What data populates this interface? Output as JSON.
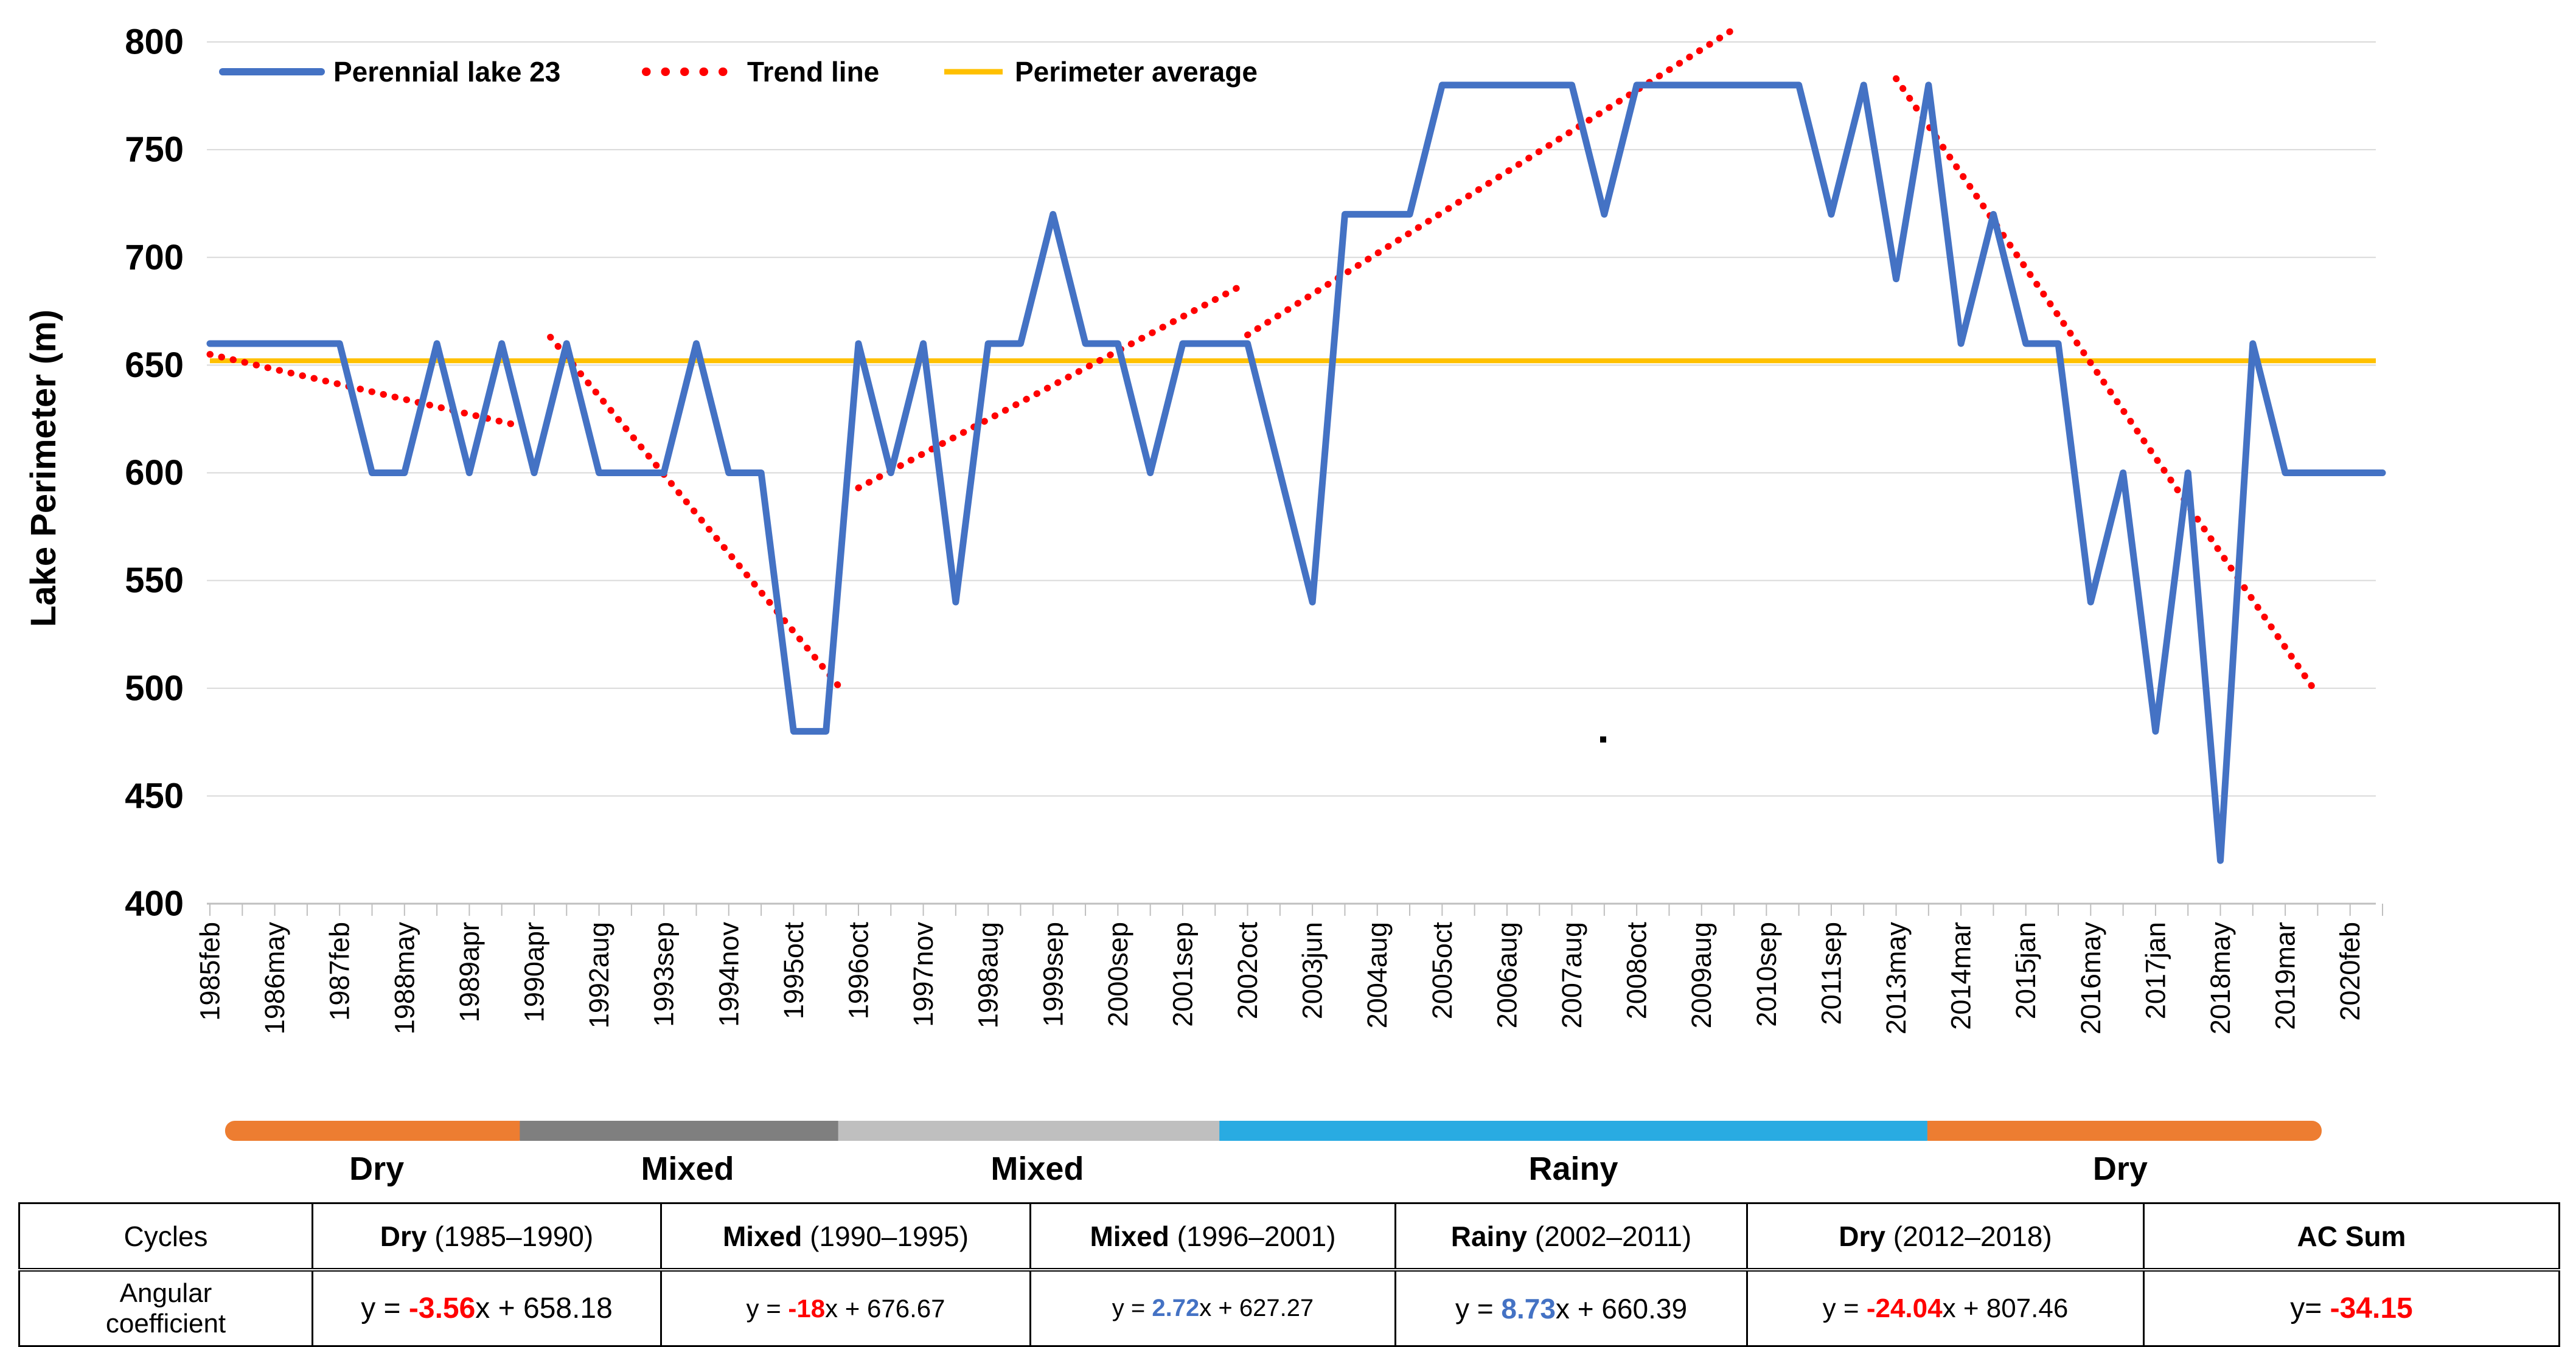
{
  "chart_data": {
    "type": "line",
    "title": "",
    "ylabel": "Lake Perimeter (m)",
    "ylim": [
      400,
      800
    ],
    "ytick_step": 50,
    "grid": "horizontal",
    "legend_position": "top-left-inside",
    "x_labels": [
      "1985feb",
      "1986may",
      "1987feb",
      "1988may",
      "1989apr",
      "1990apr",
      "1992aug",
      "1993sep",
      "1994nov",
      "1995oct",
      "1996oct",
      "1997nov",
      "1998aug",
      "1999sep",
      "2000sep",
      "2001sep",
      "2002oct",
      "2003jun",
      "2004aug",
      "2005oct",
      "2006aug",
      "2007aug",
      "2008oct",
      "2009aug",
      "2010sep",
      "2011sep",
      "2013may",
      "2014mar",
      "2015jan",
      "2016may",
      "2017jan",
      "2018may",
      "2019mar",
      "2020feb"
    ],
    "label_every_n_points": 2,
    "series": [
      {
        "name": "Perennial lake 23",
        "color": "#4472C4",
        "values": [
          660,
          660,
          660,
          660,
          660,
          600,
          600,
          660,
          600,
          660,
          600,
          660,
          600,
          600,
          600,
          660,
          600,
          600,
          480,
          480,
          660,
          600,
          660,
          540,
          660,
          660,
          720,
          660,
          660,
          600,
          660,
          660,
          660,
          600,
          540,
          720,
          720,
          720,
          780,
          780,
          780,
          780,
          780,
          720,
          780,
          780,
          780,
          780,
          780,
          780,
          720,
          780,
          690,
          780,
          660,
          720,
          660,
          660,
          540,
          600,
          480,
          600,
          420,
          660,
          600,
          600,
          600,
          600
        ]
      }
    ],
    "average_line": {
      "name": "Perimeter average",
      "value": 652,
      "color": "#FFC000"
    },
    "trend_line": {
      "name": "Trend line",
      "color": "#FF0000",
      "segments": [
        {
          "x1": 0,
          "y1": 655,
          "x2": 9.5,
          "y2": 622
        },
        {
          "x1": 10.5,
          "y1": 663,
          "x2": 19.5,
          "y2": 499
        },
        {
          "x1": 20,
          "y1": 593,
          "x2": 31.7,
          "y2": 686
        },
        {
          "x1": 32,
          "y1": 664,
          "x2": 47,
          "y2": 806
        },
        {
          "x1": 52,
          "y1": 783,
          "x2": 65,
          "y2": 497
        }
      ]
    },
    "legend": [
      {
        "label": "Perennial lake 23",
        "color": "#4472C4",
        "style": "solid"
      },
      {
        "label": "Trend line",
        "color": "#FF0000",
        "style": "dotted"
      },
      {
        "label": "Perimeter average",
        "color": "#FFC000",
        "style": "solid"
      }
    ]
  },
  "period_bands": [
    {
      "label": "Dry",
      "color": "#ED7D31",
      "from": 0.007,
      "to": 0.147
    },
    {
      "label": "Mixed",
      "color": "#7F7F7F",
      "from": 0.147,
      "to": 0.294
    },
    {
      "label": "Mixed",
      "color": "#BFBFBF",
      "from": 0.294,
      "to": 0.47
    },
    {
      "label": "Rainy",
      "color": "#29ABE2",
      "from": 0.47,
      "to": 0.789
    },
    {
      "label": "Dry",
      "color": "#ED7D31",
      "from": 0.789,
      "to": 0.975
    }
  ],
  "table": {
    "row1_label": "Cycles",
    "row2_label": "Angular coefficient",
    "cycles": [
      {
        "name": "Dry",
        "range": " (1985–1990)"
      },
      {
        "name": "Mixed",
        "range": " (1990–1995)"
      },
      {
        "name": "Mixed",
        "range": " (1996–2001)"
      },
      {
        "name": "Rainy",
        "range": " (2002–2011)"
      },
      {
        "name": "Dry",
        "range": " (2012–2018)"
      },
      {
        "name": "AC Sum",
        "range": ""
      }
    ],
    "coefficients": [
      {
        "pre": "y = ",
        "coef": "-3.56",
        "coef_color": "#FF0000",
        "post": "x + 658.18"
      },
      {
        "pre": "y = ",
        "coef": "-18",
        "coef_color": "#FF0000",
        "post": "x + 676.67"
      },
      {
        "pre": "y = ",
        "coef": "2.72",
        "coef_color": "#4472C4",
        "post": "x + 627.27"
      },
      {
        "pre": "y = ",
        "coef": "8.73",
        "coef_color": "#4472C4",
        "post": "x + 660.39"
      },
      {
        "pre": "y = ",
        "coef": "-24.04",
        "coef_color": "#FF0000",
        "post": "x + 807.46"
      },
      {
        "pre": "y= ",
        "coef": "-34.15",
        "coef_color": "#FF0000",
        "post": ""
      }
    ]
  },
  "colors": {
    "gridline": "#D9D9D9",
    "axis": "#BFBFBF",
    "artifact_dot": "#000000"
  }
}
